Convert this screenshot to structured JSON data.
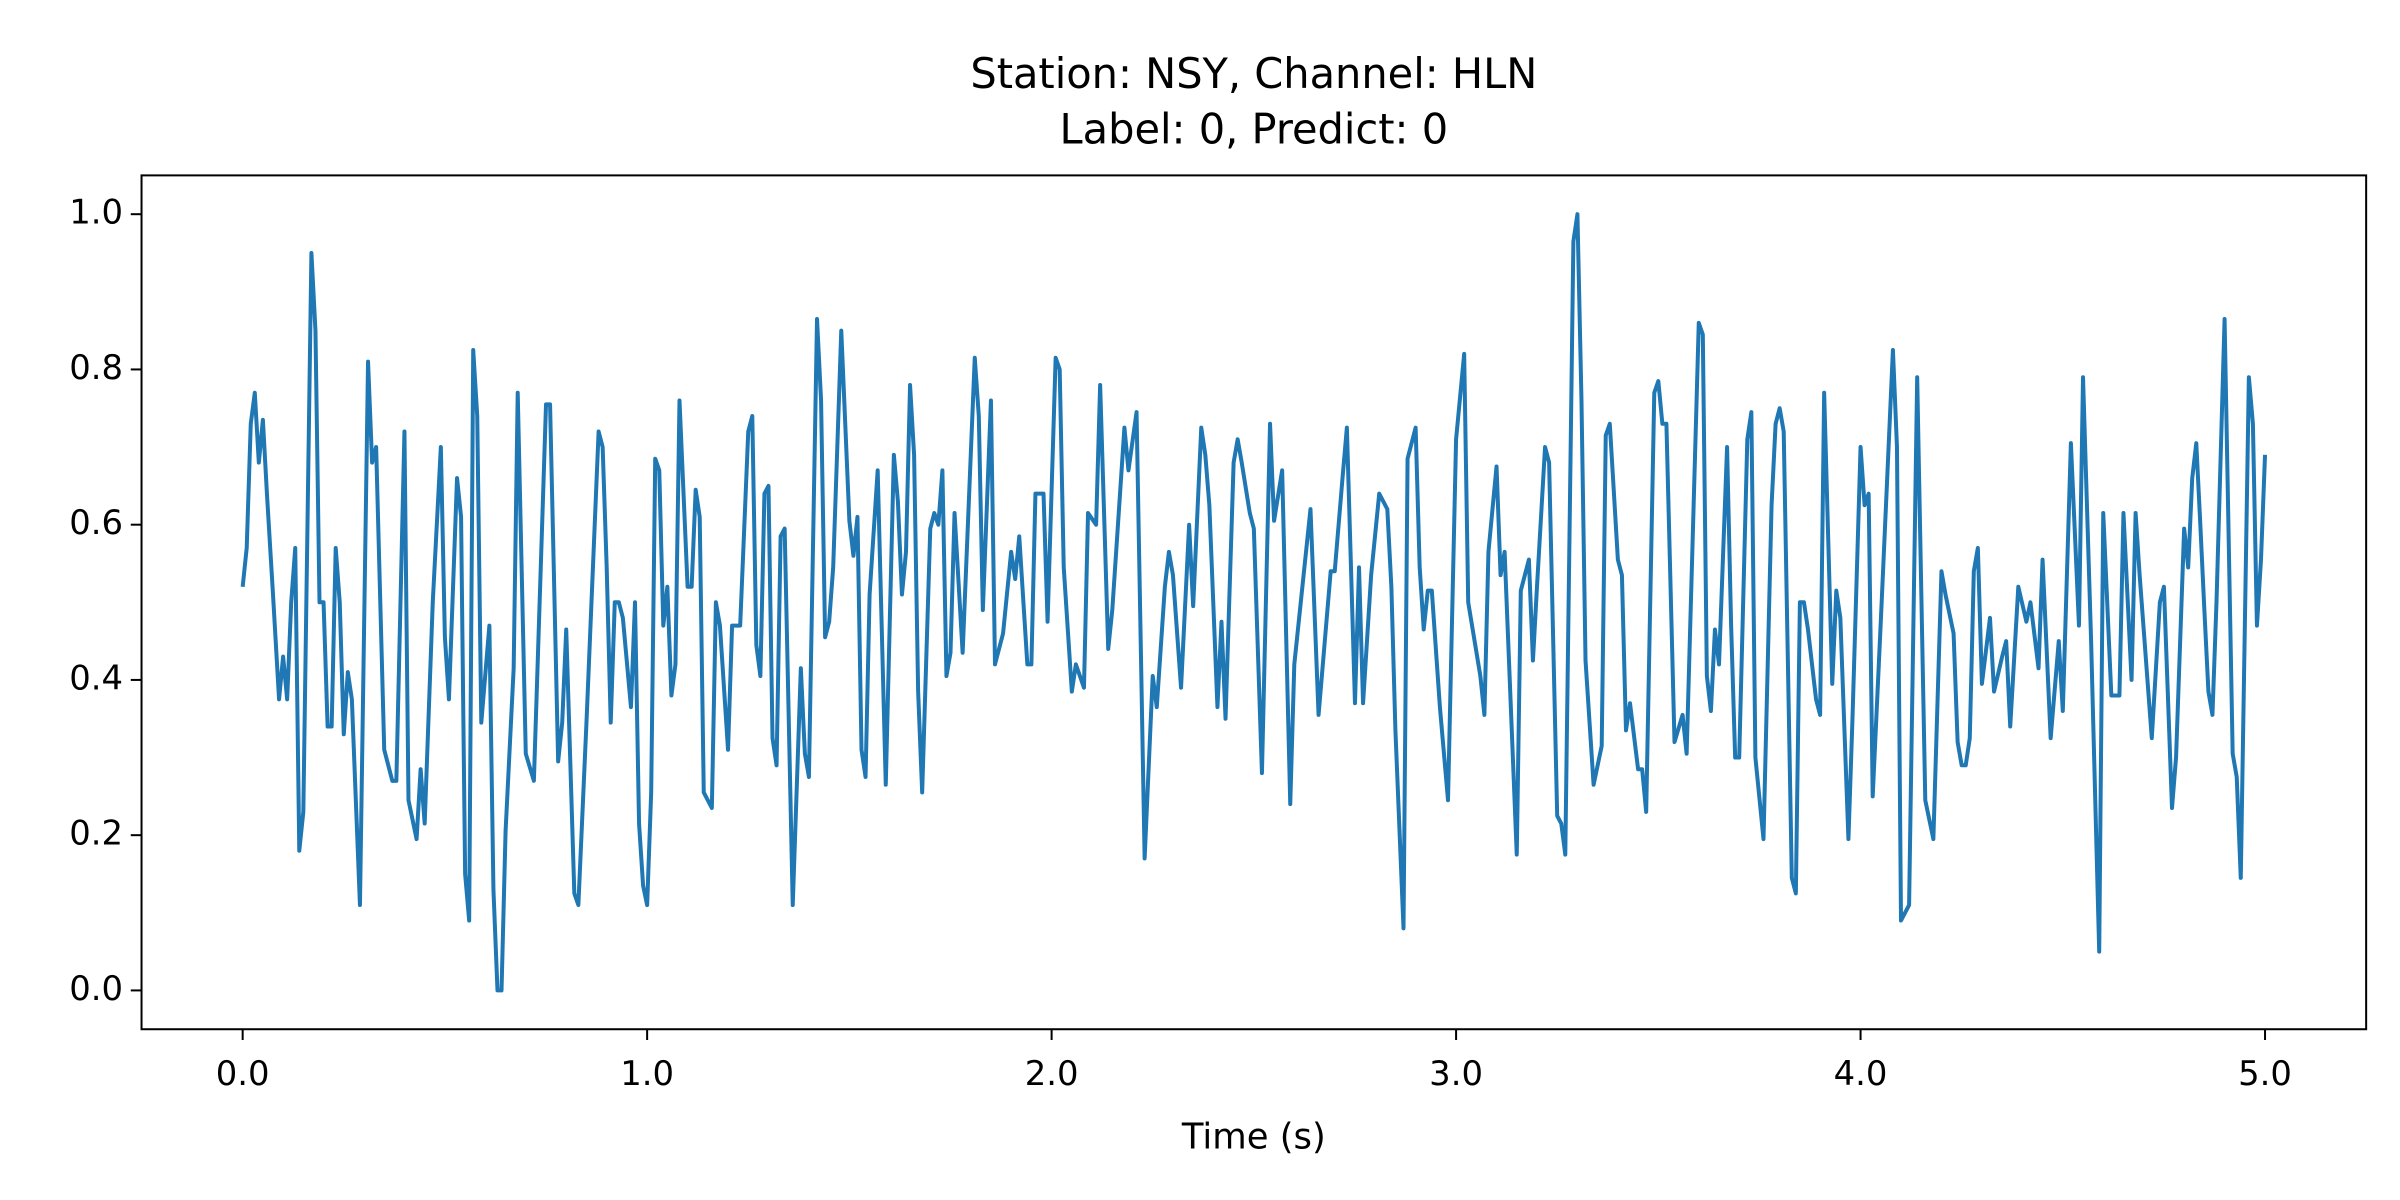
{
  "chart_data": {
    "type": "line",
    "title": [
      "Station: NSY, Channel: HLN",
      "Label: 0, Predict: 0"
    ],
    "xlabel": "Time (s)",
    "color": "#1f77b4",
    "xlim": [
      -0.25,
      5.25
    ],
    "ylim": [
      -0.05,
      1.05
    ],
    "xticks": [
      {
        "value": 0,
        "label": "0.0"
      },
      {
        "value": 1,
        "label": "1.0"
      },
      {
        "value": 2,
        "label": "2.0"
      },
      {
        "value": 3,
        "label": "3.0"
      },
      {
        "value": 4,
        "label": "4.0"
      },
      {
        "value": 5,
        "label": "5.0"
      }
    ],
    "yticks": [
      {
        "value": 0,
        "label": "0.0"
      },
      0.2,
      0.4,
      0.6,
      0.8,
      {
        "value": 1,
        "label": "1.0"
      }
    ],
    "grid": false,
    "x": [
      0,
      0.01,
      0.02,
      0.03,
      0.04,
      0.05,
      0.06,
      0.075,
      0.09,
      0.1,
      0.11,
      0.12,
      0.13,
      0.14,
      0.15,
      0.17,
      0.18,
      0.19,
      0.2,
      0.21,
      0.22,
      0.23,
      0.24,
      0.25,
      0.26,
      0.27,
      0.29,
      0.31,
      0.32,
      0.33,
      0.35,
      0.37,
      0.38,
      0.4,
      0.41,
      0.43,
      0.44,
      0.45,
      0.47,
      0.49,
      0.5,
      0.51,
      0.53,
      0.54,
      0.55,
      0.56,
      0.57,
      0.58,
      0.59,
      0.61,
      0.62,
      0.63,
      0.64,
      0.65,
      0.67,
      0.68,
      0.7,
      0.72,
      0.75,
      0.76,
      0.78,
      0.79,
      0.8,
      0.82,
      0.83,
      0.85,
      0.88,
      0.89,
      0.9,
      0.91,
      0.92,
      0.93,
      0.94,
      0.96,
      0.97,
      0.98,
      0.99,
      1.0,
      1.01,
      1.02,
      1.03,
      1.04,
      1.05,
      1.06,
      1.07,
      1.08,
      1.1,
      1.11,
      1.12,
      1.13,
      1.14,
      1.16,
      1.17,
      1.18,
      1.2,
      1.21,
      1.23,
      1.25,
      1.26,
      1.27,
      1.28,
      1.29,
      1.3,
      1.31,
      1.32,
      1.33,
      1.34,
      1.36,
      1.38,
      1.39,
      1.4,
      1.42,
      1.43,
      1.44,
      1.45,
      1.46,
      1.48,
      1.5,
      1.51,
      1.52,
      1.53,
      1.54,
      1.55,
      1.57,
      1.59,
      1.61,
      1.62,
      1.63,
      1.64,
      1.65,
      1.66,
      1.67,
      1.68,
      1.7,
      1.71,
      1.72,
      1.73,
      1.74,
      1.75,
      1.76,
      1.78,
      1.81,
      1.82,
      1.83,
      1.85,
      1.86,
      1.88,
      1.9,
      1.91,
      1.92,
      1.94,
      1.95,
      1.96,
      1.98,
      1.99,
      2.01,
      2.02,
      2.03,
      2.05,
      2.06,
      2.08,
      2.09,
      2.11,
      2.12,
      2.14,
      2.15,
      2.18,
      2.19,
      2.21,
      2.23,
      2.25,
      2.26,
      2.28,
      2.29,
      2.3,
      2.32,
      2.34,
      2.35,
      2.37,
      2.38,
      2.39,
      2.41,
      2.42,
      2.43,
      2.45,
      2.46,
      2.47,
      2.49,
      2.5,
      2.52,
      2.54,
      2.55,
      2.57,
      2.59,
      2.6,
      2.63,
      2.64,
      2.66,
      2.69,
      2.7,
      2.72,
      2.73,
      2.75,
      2.76,
      2.77,
      2.79,
      2.81,
      2.83,
      2.84,
      2.85,
      2.87,
      2.88,
      2.9,
      2.91,
      2.92,
      2.93,
      2.94,
      2.96,
      2.98,
      3.0,
      3.02,
      3.03,
      3.06,
      3.07,
      3.08,
      3.1,
      3.11,
      3.12,
      3.15,
      3.16,
      3.18,
      3.19,
      3.2,
      3.22,
      3.23,
      3.25,
      3.26,
      3.27,
      3.29,
      3.3,
      3.31,
      3.32,
      3.34,
      3.36,
      3.37,
      3.38,
      3.4,
      3.41,
      3.42,
      3.43,
      3.45,
      3.46,
      3.47,
      3.49,
      3.5,
      3.51,
      3.52,
      3.54,
      3.56,
      3.57,
      3.6,
      3.61,
      3.62,
      3.63,
      3.64,
      3.65,
      3.67,
      3.68,
      3.69,
      3.7,
      3.72,
      3.73,
      3.74,
      3.76,
      3.78,
      3.79,
      3.8,
      3.81,
      3.83,
      3.84,
      3.85,
      3.86,
      3.87,
      3.89,
      3.9,
      3.91,
      3.93,
      3.94,
      3.95,
      3.97,
      3.98,
      4.0,
      4.01,
      4.02,
      4.03,
      4.05,
      4.08,
      4.09,
      4.1,
      4.12,
      4.14,
      4.16,
      4.18,
      4.2,
      4.21,
      4.23,
      4.24,
      4.25,
      4.26,
      4.27,
      4.28,
      4.29,
      4.3,
      4.32,
      4.33,
      4.35,
      4.36,
      4.37,
      4.39,
      4.41,
      4.42,
      4.44,
      4.45,
      4.47,
      4.49,
      4.5,
      4.52,
      4.54,
      4.55,
      4.57,
      4.59,
      4.6,
      4.62,
      4.64,
      4.65,
      4.67,
      4.68,
      4.69,
      4.72,
      4.74,
      4.75,
      4.77,
      4.78,
      4.8,
      4.81,
      4.82,
      4.83,
      4.84,
      4.85,
      4.86,
      4.87,
      4.88,
      4.9,
      4.92,
      4.93,
      4.94,
      4.96,
      4.97,
      4.98,
      4.99,
      5.0
    ],
    "values": [
      0.52,
      0.57,
      0.73,
      0.77,
      0.68,
      0.735,
      0.64,
      0.51,
      0.375,
      0.43,
      0.375,
      0.5,
      0.57,
      0.18,
      0.23,
      0.95,
      0.85,
      0.5,
      0.5,
      0.34,
      0.34,
      0.57,
      0.5,
      0.33,
      0.41,
      0.375,
      0.11,
      0.81,
      0.68,
      0.7,
      0.31,
      0.27,
      0.27,
      0.72,
      0.245,
      0.195,
      0.285,
      0.215,
      0.5,
      0.7,
      0.455,
      0.375,
      0.66,
      0.61,
      0.15,
      0.09,
      0.825,
      0.74,
      0.345,
      0.47,
      0.13,
      0,
      0,
      0.205,
      0.415,
      0.77,
      0.305,
      0.27,
      0.755,
      0.755,
      0.295,
      0.345,
      0.465,
      0.125,
      0.11,
      0.345,
      0.72,
      0.7,
      0.545,
      0.345,
      0.5,
      0.5,
      0.48,
      0.365,
      0.5,
      0.215,
      0.135,
      0.11,
      0.255,
      0.685,
      0.67,
      0.47,
      0.52,
      0.38,
      0.42,
      0.76,
      0.52,
      0.52,
      0.645,
      0.61,
      0.255,
      0.235,
      0.5,
      0.47,
      0.31,
      0.47,
      0.47,
      0.72,
      0.74,
      0.445,
      0.405,
      0.64,
      0.65,
      0.325,
      0.29,
      0.585,
      0.595,
      0.11,
      0.415,
      0.305,
      0.275,
      0.865,
      0.76,
      0.455,
      0.475,
      0.545,
      0.85,
      0.605,
      0.56,
      0.61,
      0.31,
      0.275,
      0.51,
      0.67,
      0.265,
      0.69,
      0.63,
      0.51,
      0.565,
      0.78,
      0.69,
      0.385,
      0.255,
      0.595,
      0.615,
      0.6,
      0.67,
      0.405,
      0.435,
      0.615,
      0.435,
      0.815,
      0.74,
      0.49,
      0.76,
      0.42,
      0.46,
      0.565,
      0.53,
      0.585,
      0.42,
      0.42,
      0.64,
      0.64,
      0.475,
      0.815,
      0.8,
      0.545,
      0.385,
      0.42,
      0.39,
      0.615,
      0.6,
      0.78,
      0.44,
      0.49,
      0.725,
      0.67,
      0.745,
      0.17,
      0.405,
      0.365,
      0.52,
      0.565,
      0.535,
      0.39,
      0.6,
      0.495,
      0.725,
      0.69,
      0.625,
      0.365,
      0.475,
      0.35,
      0.68,
      0.71,
      0.68,
      0.615,
      0.595,
      0.28,
      0.73,
      0.605,
      0.67,
      0.24,
      0.42,
      0.57,
      0.62,
      0.355,
      0.54,
      0.54,
      0.665,
      0.725,
      0.37,
      0.545,
      0.37,
      0.535,
      0.64,
      0.62,
      0.52,
      0.335,
      0.08,
      0.685,
      0.725,
      0.545,
      0.465,
      0.515,
      0.515,
      0.365,
      0.245,
      0.71,
      0.82,
      0.5,
      0.405,
      0.355,
      0.565,
      0.675,
      0.535,
      0.565,
      0.175,
      0.515,
      0.555,
      0.425,
      0.52,
      0.7,
      0.68,
      0.225,
      0.215,
      0.175,
      0.965,
      1.0,
      0.76,
      0.425,
      0.265,
      0.315,
      0.715,
      0.73,
      0.555,
      0.535,
      0.335,
      0.37,
      0.285,
      0.285,
      0.23,
      0.77,
      0.785,
      0.73,
      0.73,
      0.32,
      0.355,
      0.305,
      0.86,
      0.845,
      0.405,
      0.36,
      0.465,
      0.42,
      0.7,
      0.47,
      0.3,
      0.3,
      0.71,
      0.745,
      0.3,
      0.195,
      0.625,
      0.73,
      0.75,
      0.72,
      0.145,
      0.125,
      0.5,
      0.5,
      0.465,
      0.375,
      0.355,
      0.77,
      0.395,
      0.515,
      0.48,
      0.195,
      0.35,
      0.7,
      0.625,
      0.64,
      0.25,
      0.475,
      0.825,
      0.7,
      0.09,
      0.11,
      0.79,
      0.245,
      0.195,
      0.54,
      0.51,
      0.46,
      0.32,
      0.29,
      0.29,
      0.325,
      0.54,
      0.57,
      0.395,
      0.48,
      0.385,
      0.43,
      0.45,
      0.34,
      0.52,
      0.475,
      0.5,
      0.415,
      0.555,
      0.325,
      0.45,
      0.36,
      0.705,
      0.47,
      0.79,
      0.45,
      0.05,
      0.615,
      0.38,
      0.38,
      0.615,
      0.4,
      0.615,
      0.535,
      0.325,
      0.5,
      0.52,
      0.235,
      0.3,
      0.595,
      0.545,
      0.66,
      0.705,
      0.6,
      0.49,
      0.385,
      0.355,
      0.5,
      0.865,
      0.305,
      0.275,
      0.145,
      0.79,
      0.73,
      0.47,
      0.555,
      0.69
    ]
  }
}
